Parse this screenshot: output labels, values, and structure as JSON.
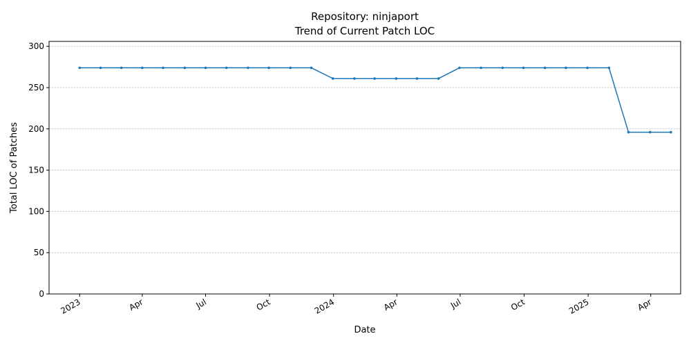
{
  "chart_data": {
    "type": "line",
    "title_line1": "Repository: ninjaport",
    "title_line2": "Trend of Current Patch LOC",
    "xlabel": "Date",
    "ylabel": "Total LOC of Patches",
    "ylim": [
      0,
      306
    ],
    "yticks": [
      0,
      50,
      100,
      150,
      200,
      250,
      300
    ],
    "xlim": [
      "2022-11-18",
      "2025-05-14"
    ],
    "xticks": [
      {
        "date": "2023-01-01",
        "label": "2023"
      },
      {
        "date": "2023-04-01",
        "label": "Apr"
      },
      {
        "date": "2023-07-01",
        "label": "Jul"
      },
      {
        "date": "2023-10-01",
        "label": "Oct"
      },
      {
        "date": "2024-01-01",
        "label": "2024"
      },
      {
        "date": "2024-04-01",
        "label": "Apr"
      },
      {
        "date": "2024-07-01",
        "label": "Jul"
      },
      {
        "date": "2024-10-01",
        "label": "Oct"
      },
      {
        "date": "2025-01-01",
        "label": "2025"
      },
      {
        "date": "2025-04-01",
        "label": "Apr"
      }
    ],
    "grid": "y-dashed",
    "line_color": "#1f77b4",
    "series": [
      {
        "x": [
          "2023-01-01",
          "2023-01-31",
          "2023-03-02",
          "2023-04-01",
          "2023-05-01",
          "2023-06-01",
          "2023-07-01",
          "2023-07-31",
          "2023-08-31",
          "2023-09-30",
          "2023-10-31",
          "2023-11-30",
          "2023-12-31",
          "2024-01-31",
          "2024-02-29",
          "2024-03-31",
          "2024-04-30",
          "2024-05-31",
          "2024-06-30",
          "2024-07-31",
          "2024-08-31",
          "2024-09-30",
          "2024-10-31",
          "2024-11-30",
          "2024-12-31",
          "2025-01-31",
          "2025-02-28",
          "2025-03-31",
          "2025-04-30"
        ],
        "values": [
          274,
          274,
          274,
          274,
          274,
          274,
          274,
          274,
          274,
          274,
          274,
          274,
          261,
          261,
          261,
          261,
          261,
          261,
          274,
          274,
          274,
          274,
          274,
          274,
          274,
          274,
          196,
          196,
          196
        ]
      }
    ]
  }
}
